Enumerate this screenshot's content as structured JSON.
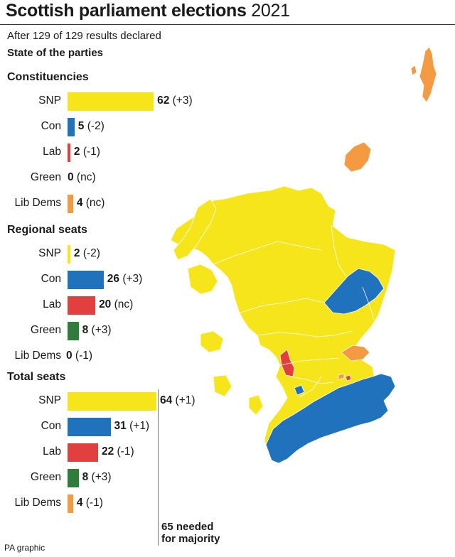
{
  "title_bold": "Scottish parliament elections",
  "title_regular": "2021",
  "subtitle": "After 129 of 129 results declared",
  "state_label": "State of the parties",
  "majority_label_line1": "65 needed",
  "majority_label_line2": "for majority",
  "credit": "PA graphic",
  "colors": {
    "SNP": "#f6e51b",
    "Con": "#1f72bb",
    "Lab": "#e2403f",
    "Green": "#2e7d3a",
    "Lib Dems": "#f49a42"
  },
  "chart_data": [
    {
      "type": "bar",
      "orientation": "horizontal",
      "title": "Constituencies",
      "categories": [
        "SNP",
        "Con",
        "Lab",
        "Green",
        "Lib Dems"
      ],
      "values": [
        62,
        5,
        2,
        0,
        4
      ],
      "changes": [
        "(+3)",
        "(-2)",
        "(-1)",
        "(nc)",
        "(nc)"
      ]
    },
    {
      "type": "bar",
      "orientation": "horizontal",
      "title": "Regional seats",
      "categories": [
        "SNP",
        "Con",
        "Lab",
        "Green",
        "Lib Dems"
      ],
      "values": [
        2,
        26,
        20,
        8,
        0
      ],
      "changes": [
        "(-2)",
        "(+3)",
        "(nc)",
        "(+3)",
        "(-1)"
      ]
    },
    {
      "type": "bar",
      "orientation": "horizontal",
      "title": "Total seats",
      "categories": [
        "SNP",
        "Con",
        "Lab",
        "Green",
        "Lib Dems"
      ],
      "values": [
        64,
        31,
        22,
        8,
        4
      ],
      "changes": [
        "(+1)",
        "(+1)",
        "(-1)",
        "(+3)",
        "(-1)"
      ],
      "majority_threshold": 65
    }
  ],
  "map": {
    "type": "map",
    "region_colors": [
      "SNP",
      "Con",
      "Lab",
      "Lib Dems"
    ]
  }
}
